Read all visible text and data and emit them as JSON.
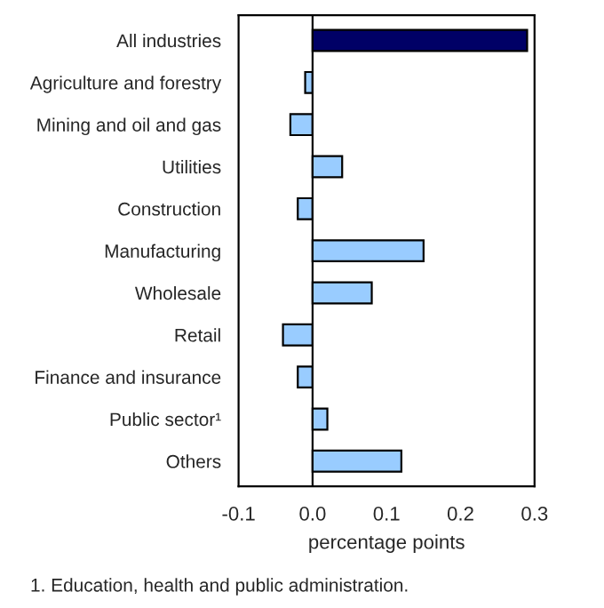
{
  "chart_data": {
    "type": "bar",
    "orientation": "horizontal",
    "xlabel": "percentage points",
    "categories": [
      "All industries",
      "Agriculture and forestry",
      "Mining and oil and gas",
      "Utilities",
      "Construction",
      "Manufacturing",
      "Wholesale",
      "Retail",
      "Finance and insurance",
      "Public sector¹",
      "Others"
    ],
    "values": [
      0.29,
      -0.01,
      -0.03,
      0.04,
      -0.02,
      0.15,
      0.08,
      -0.04,
      -0.02,
      0.02,
      0.12
    ],
    "colors": [
      "#000066",
      "#99ccff",
      "#99ccff",
      "#99ccff",
      "#99ccff",
      "#99ccff",
      "#99ccff",
      "#99ccff",
      "#99ccff",
      "#99ccff",
      "#99ccff"
    ],
    "xlim": [
      -0.1,
      0.3
    ],
    "xticks": [
      {
        "value": -0.1,
        "label": "-0.1"
      },
      {
        "value": 0.0,
        "label": "0.0"
      },
      {
        "value": 0.1,
        "label": "0.1"
      },
      {
        "value": 0.2,
        "label": "0.2"
      },
      {
        "value": 0.3,
        "label": "0.3"
      }
    ],
    "grid": false,
    "legend": false,
    "ref_lines": [
      {
        "axis": "x",
        "value": 0.0,
        "color": "#000000"
      }
    ],
    "annotations": [
      "1. Education, health and public administration."
    ]
  }
}
